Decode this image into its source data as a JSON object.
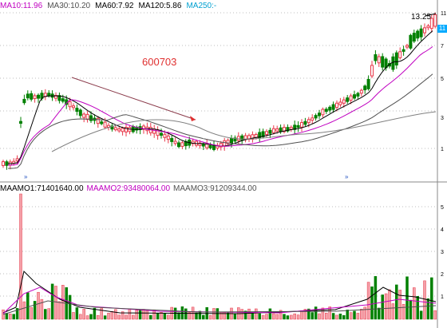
{
  "ma_header": {
    "ma10": "MA10:11.96",
    "ma30": "MA30:10.20",
    "ma60": "MA60:7.92",
    "ma120": "MA120:5.86",
    "ma250": "MA250:-"
  },
  "vol_header": {
    "maamo1": "MAAMO1:71401640.00",
    "maamo2": "MAAMO2:93480064.00",
    "maamo3": "MAAMO3:91209344.00"
  },
  "stock_code": "600703",
  "high_price_label": "13.25",
  "right_tag": "11",
  "colors": {
    "up": "#e8394a",
    "down": "#008000",
    "ma10": "#000000",
    "ma30": "#c000c0",
    "ma60": "#505050",
    "ma120": "#808080",
    "annotation": "#8a3a4a",
    "grid": "#bdbdbd"
  },
  "price_axis_ticks": [
    "1",
    "3",
    "5",
    "7",
    "9",
    "11"
  ],
  "volume_axis_ticks": [
    "1",
    "2",
    "3",
    "4",
    "5"
  ]
}
